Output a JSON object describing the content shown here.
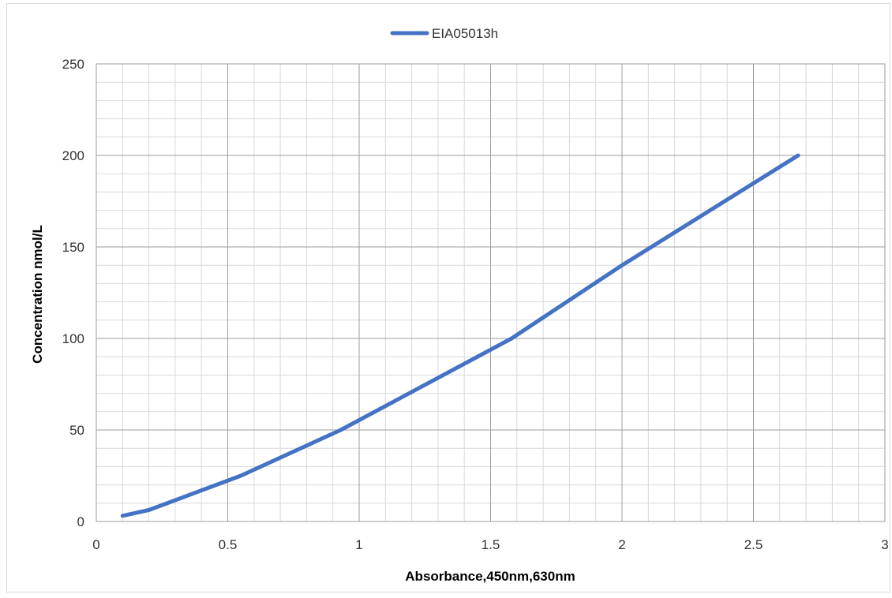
{
  "chart_data": {
    "type": "line",
    "title": "",
    "xlabel": "Absorbance,450nm,630nm",
    "ylabel": "Concentration nmol/L",
    "xlim": [
      0,
      3
    ],
    "ylim": [
      0,
      250
    ],
    "x_ticks": [
      0,
      0.5,
      1,
      1.5,
      2,
      2.5,
      3
    ],
    "x_tick_labels": [
      "0",
      "0.5",
      "1",
      "1.5",
      "2",
      "2.5",
      "3"
    ],
    "y_ticks": [
      0,
      50,
      100,
      150,
      200,
      250
    ],
    "y_tick_labels": [
      "0",
      "50",
      "100",
      "150",
      "200",
      "250"
    ],
    "grid": true,
    "legend_position": "top-center",
    "series": [
      {
        "name": "EIA05013h",
        "color": "#4472c4",
        "points": [
          {
            "x": 0.1,
            "y": 3.125
          },
          {
            "x": 0.2,
            "y": 6.25
          },
          {
            "x": 0.55,
            "y": 25
          },
          {
            "x": 0.93,
            "y": 50
          },
          {
            "x": 1.58,
            "y": 100
          },
          {
            "x": 2.0,
            "y": 140
          },
          {
            "x": 2.67,
            "y": 200
          }
        ]
      }
    ]
  }
}
